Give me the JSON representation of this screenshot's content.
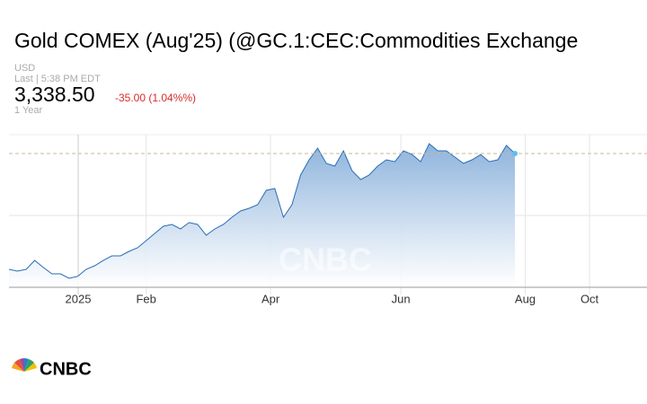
{
  "chart_data": {
    "type": "area",
    "title": "Gold COMEX (Aug'25) (@GC.1:CEC:Commodities Exchange",
    "currency": "USD",
    "last_time": "Last | 5:38 PM EDT",
    "price": "3,338.50",
    "change": "-35.00 (1.04%%)",
    "period": "1 Year",
    "watermark": "CNBC",
    "logo": "CNBC",
    "values": [
      2420,
      2406,
      2420,
      2491,
      2435,
      2385,
      2385,
      2349,
      2364,
      2420,
      2449,
      2491,
      2527,
      2527,
      2563,
      2591,
      2648,
      2705,
      2762,
      2776,
      2741,
      2791,
      2776,
      2691,
      2741,
      2776,
      2833,
      2883,
      2904,
      2933,
      3047,
      3061,
      2833,
      2933,
      3168,
      3289,
      3381,
      3260,
      3239,
      3360,
      3203,
      3132,
      3168,
      3239,
      3289,
      3274,
      3360,
      3331,
      3274,
      3417,
      3360,
      3360,
      3310,
      3260,
      3289,
      3331,
      3274,
      3289,
      3403,
      3338.5
    ],
    "color": "#2a6db5",
    "xlim": [
      0,
      74.4
    ],
    "ylim": [
      2278,
      3488
    ],
    "xticks": [
      {
        "value": 8.07,
        "label": "2025"
      },
      {
        "value": 16.0,
        "label": "Feb"
      },
      {
        "value": 30.5,
        "label": "Apr"
      },
      {
        "value": 45.7,
        "label": "Jun"
      },
      {
        "value": 60.2,
        "label": "Aug"
      },
      {
        "value": 67.7,
        "label": "Oct"
      }
    ]
  }
}
